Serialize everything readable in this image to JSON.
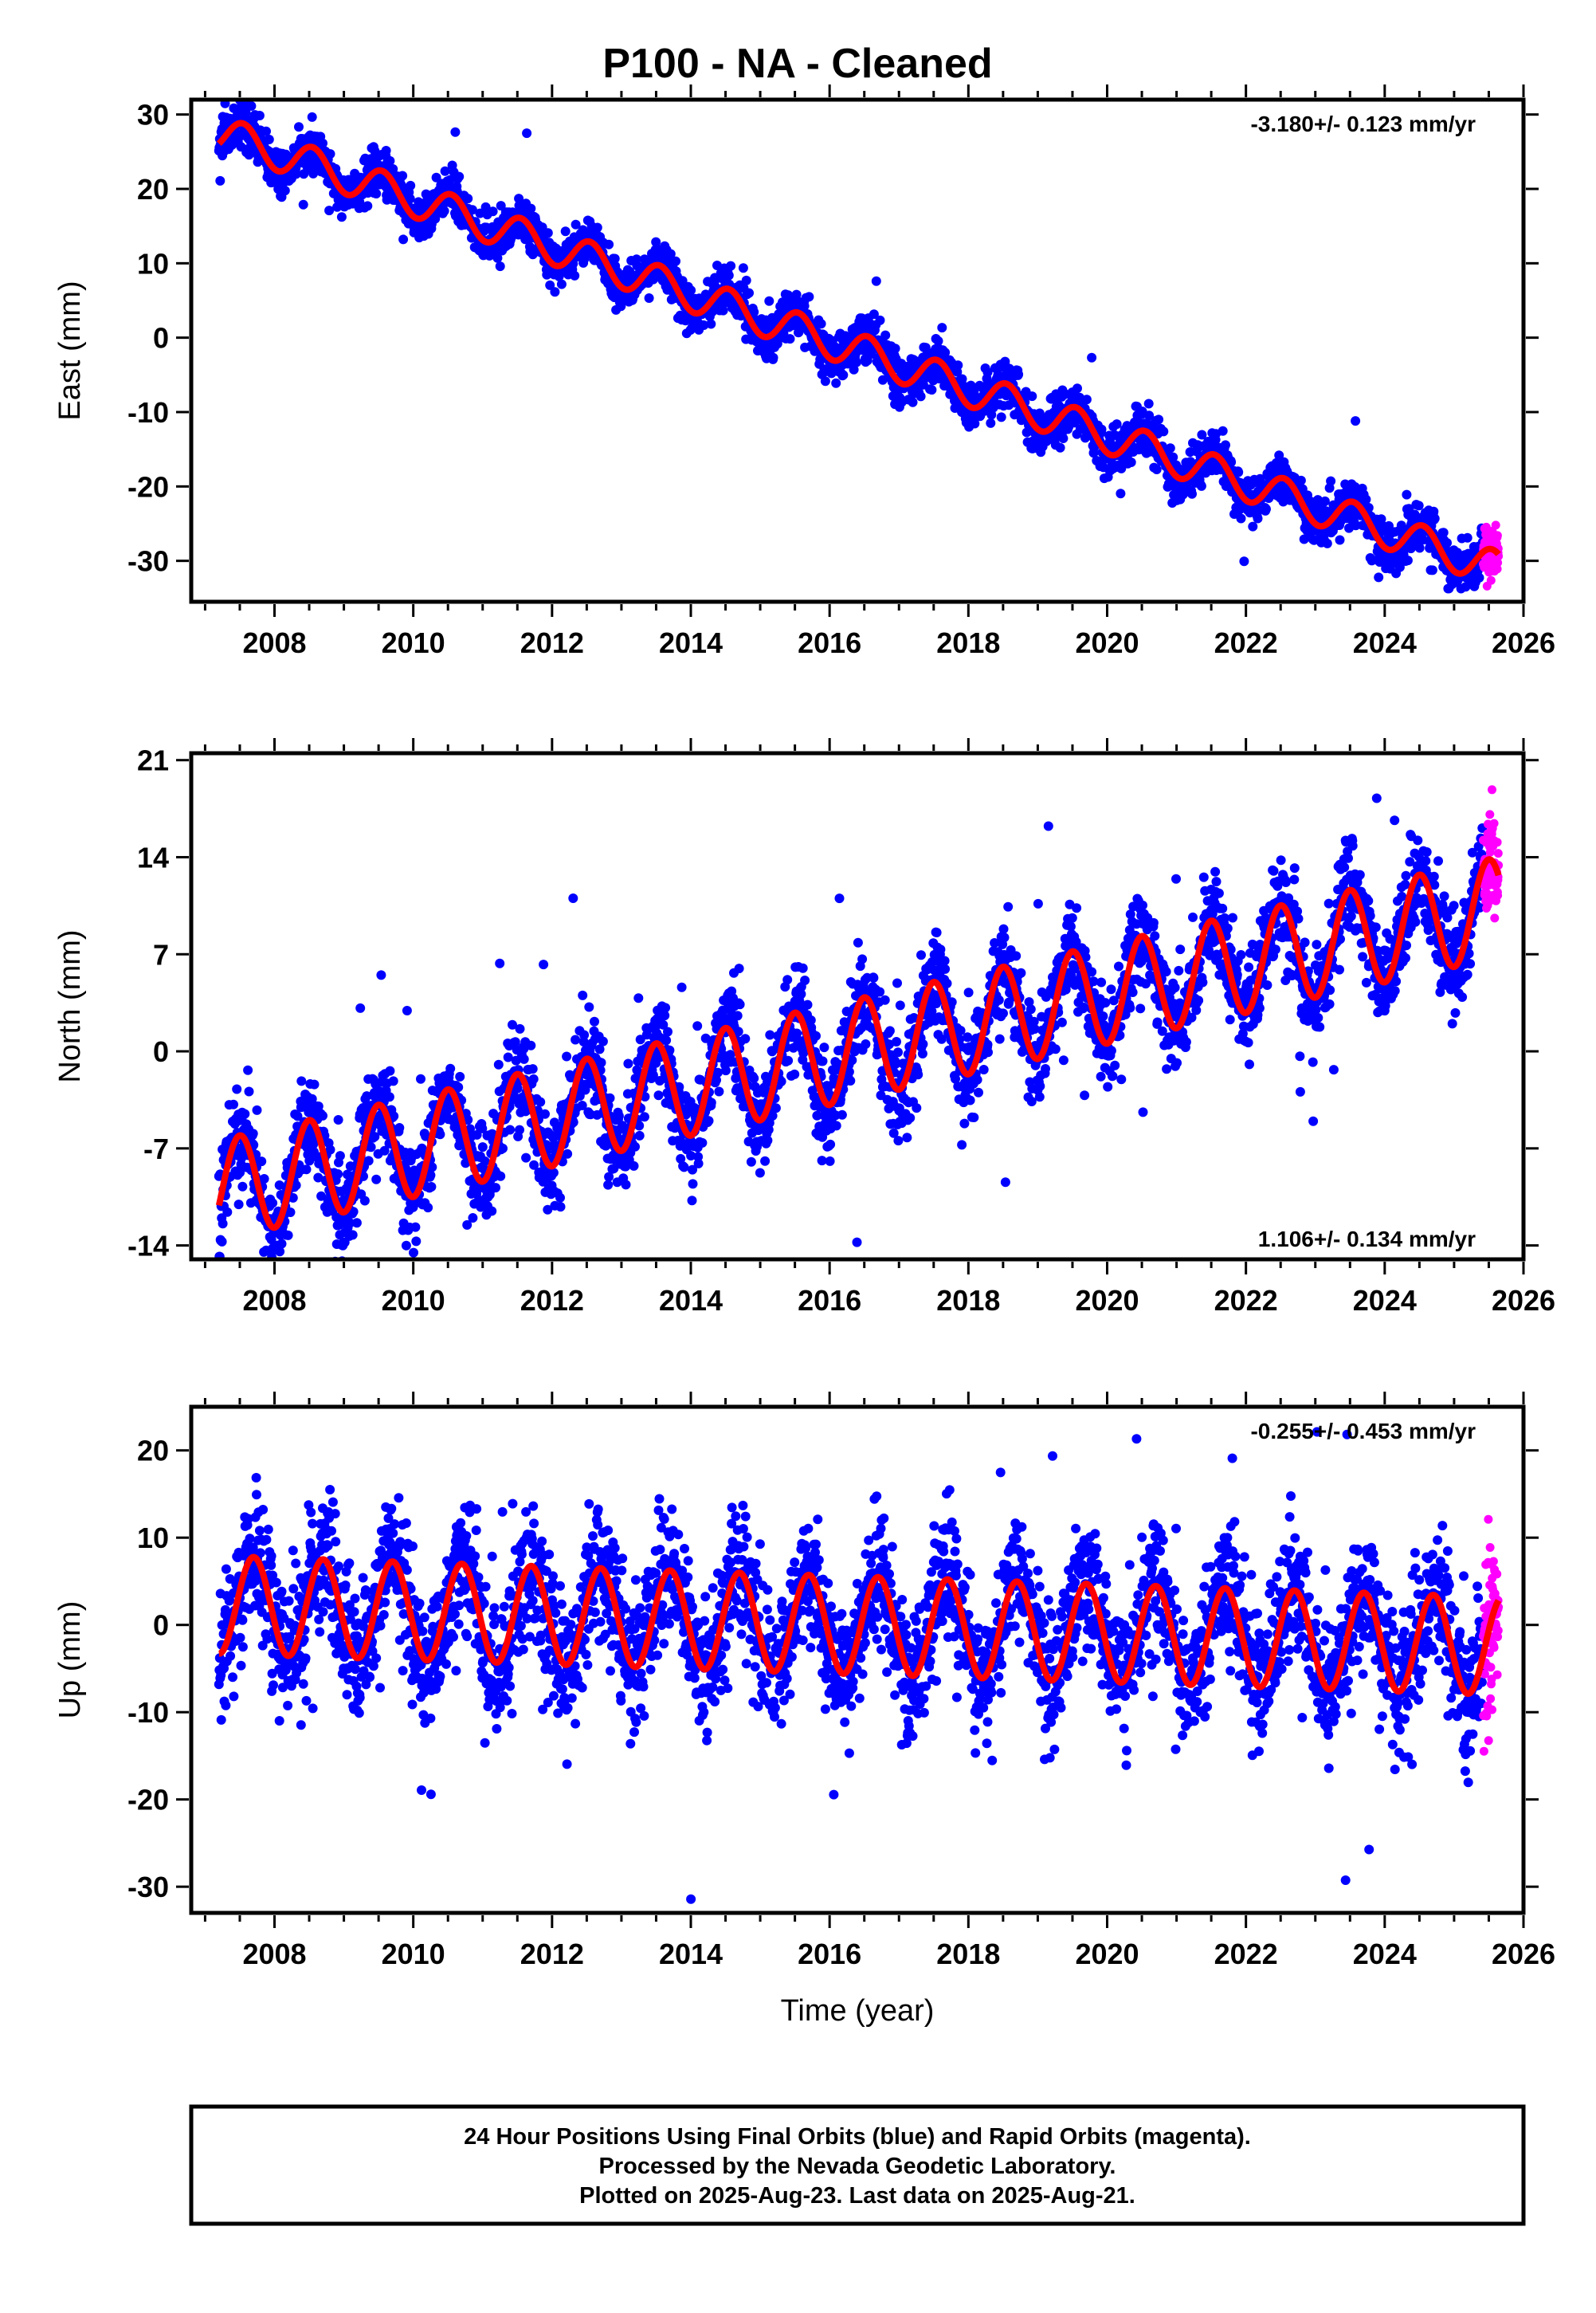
{
  "title": "P100  - NA - Cleaned",
  "colors": {
    "final_orbits": "#0000ff",
    "rapid_orbits": "#ff00ff",
    "model_fit": "#ff0000",
    "frame": "#000000"
  },
  "notes": [
    "24 Hour Positions Using Final Orbits (blue) and Rapid Orbits (magenta).",
    "Processed by the Nevada Geodetic Laboratory.",
    "Plotted on 2025-Aug-23. Last data on 2025-Aug-21."
  ],
  "chart_data": [
    {
      "type": "scatter",
      "component": "east",
      "ylabel": "East (mm)",
      "xlabel": "",
      "rate_label": "-3.180+/- 0.123 mm/yr",
      "rate_position": "top-right",
      "xlim": [
        2006.8,
        2026.0
      ],
      "ylim": [
        -35.5,
        32
      ],
      "yticks": [
        -30,
        -20,
        -10,
        0,
        10,
        20,
        30
      ],
      "xticks": [
        2008,
        2010,
        2012,
        2014,
        2016,
        2018,
        2020,
        2022,
        2024,
        2026
      ],
      "start_year": 2007.2,
      "final_end_year": 2025.42,
      "last_data_year": 2025.64,
      "trend_mm_per_yr": -3.18,
      "value_at_start": 27.5,
      "annual_amplitude_mm": 2.4,
      "annual_peak_fraction": 0.55,
      "scatter_mm": 1.6,
      "outlier_fraction": 0.004,
      "series": [
        {
          "name": "Final Orbits (blue)",
          "color": "#0000ff"
        },
        {
          "name": "Rapid Orbits (magenta)",
          "color": "#ff00ff"
        }
      ]
    },
    {
      "type": "scatter",
      "component": "north",
      "ylabel": "North (mm)",
      "xlabel": "",
      "rate_label": "1.106+/- 0.134 mm/yr",
      "rate_position": "bottom-right",
      "xlim": [
        2006.8,
        2026.0
      ],
      "ylim": [
        -15,
        21.5
      ],
      "yticks": [
        -14,
        -7,
        0,
        7,
        14,
        21
      ],
      "xticks": [
        2008,
        2010,
        2012,
        2014,
        2016,
        2018,
        2020,
        2022,
        2024,
        2026
      ],
      "start_year": 2007.2,
      "final_end_year": 2025.42,
      "last_data_year": 2025.64,
      "trend_mm_per_yr": 1.106,
      "value_at_start": -10.0,
      "annual_amplitude_mm": 3.6,
      "annual_peak_fraction": 0.5,
      "scatter_mm": 1.7,
      "outlier_fraction": 0.012,
      "series": [
        {
          "name": "Final Orbits (blue)",
          "color": "#0000ff"
        },
        {
          "name": "Rapid Orbits (magenta)",
          "color": "#ff00ff"
        }
      ]
    },
    {
      "type": "scatter",
      "component": "up",
      "ylabel": "Up (mm)",
      "xlabel": "Time (year)",
      "rate_label": "-0.255+/- 0.453 mm/yr",
      "rate_position": "top-right",
      "xlim": [
        2006.8,
        2026.0
      ],
      "ylim": [
        -33,
        25
      ],
      "yticks": [
        -30,
        -20,
        -10,
        0,
        10,
        20
      ],
      "xticks": [
        2008,
        2010,
        2012,
        2014,
        2016,
        2018,
        2020,
        2022,
        2024,
        2026
      ],
      "start_year": 2007.2,
      "final_end_year": 2025.42,
      "last_data_year": 2025.64,
      "trend_mm_per_yr": -0.255,
      "value_at_start": 2.3,
      "annual_amplitude_mm": 5.6,
      "annual_peak_fraction": 0.7,
      "scatter_mm": 3.8,
      "outlier_fraction": 0.01,
      "series": [
        {
          "name": "Final Orbits (blue)",
          "color": "#0000ff"
        },
        {
          "name": "Rapid Orbits (magenta)",
          "color": "#ff00ff"
        }
      ]
    }
  ]
}
